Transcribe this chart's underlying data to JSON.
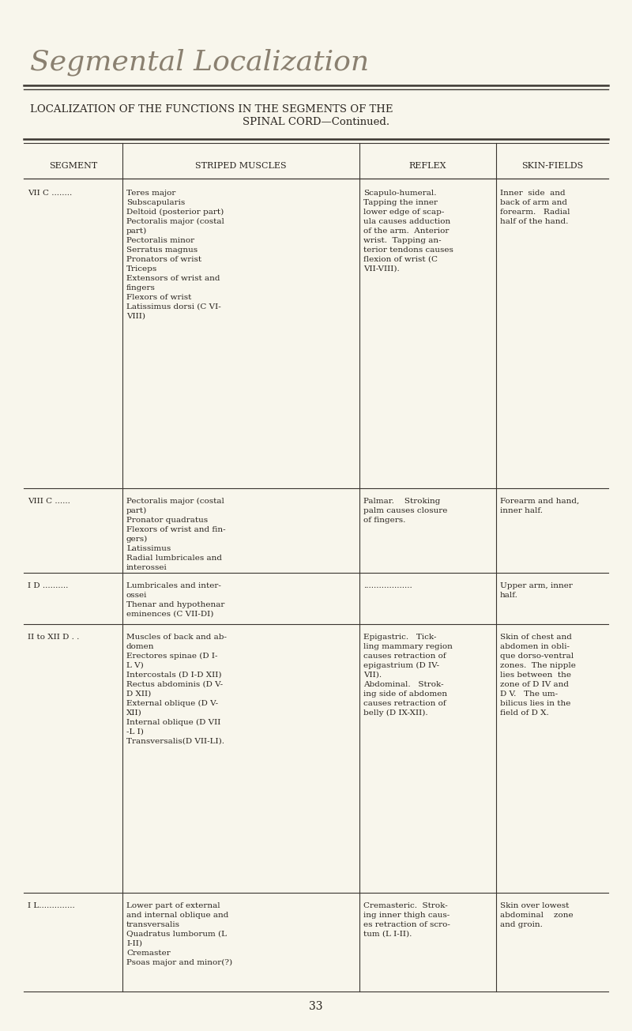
{
  "bg_color": "#f8f6ec",
  "title_italic": "Segmental Localization",
  "main_title_line1": "LOCALIZATION OF THE FUNCTIONS IN THE SEGMENTS OF THE",
  "main_title_line2": "SPINAL CORD—Continued.",
  "col_headers": [
    "SEGMENT",
    "STRIPED MUSCLES",
    "REFLEX",
    "SKIN-FIELDS"
  ],
  "page_number": "33",
  "text_color": "#2a2520",
  "line_color": "#3a3530",
  "rows": [
    {
      "segment": "VII C ........",
      "muscles": "Teres major\nSubscapularis\nDeltoid (posterior part)\nPectoralis major (costal\npart)\nPectoralis minor\nSerratus magnus\nPronators of wrist\nTriceps\nExtensors of wrist and\nfingers\nFlexors of wrist\nLatissimus dorsi (C VI-\nVIII)",
      "reflex": "Scapulo-humeral.\nTapping the inner\nlower edge of scap-\nula causes adduction\nof the arm.  Anterior\nwrist.  Tapping an-\nterior tendons causes\nflexion of wrist (C\nVII-VIII).",
      "skin": "Inner  side  and\nback of arm and\nforearm.   Radial\nhalf of the hand."
    },
    {
      "segment": "VIII C ......",
      "muscles": "Pectoralis major (costal\npart)\nPronator quadratus\nFlexors of wrist and fin-\ngers)\nLatissimus\nRadial lumbricales and\ninterossei",
      "reflex": "Palmar.    Stroking\npalm causes closure\nof fingers.",
      "skin": "Forearm and hand,\ninner half."
    },
    {
      "segment": "I D ..........",
      "muscles": "Lumbricales and inter-\nossei\nThenar and hypothenar\neminences (C VII-DI)",
      "reflex": "...................",
      "skin": "Upper arm, inner\nhalf."
    },
    {
      "segment": "II to XII D . .",
      "muscles": "Muscles of back and ab-\ndomen\nErectores spinae (D I-\nL V)\nIntercostals (D I-D XII)\nRectus abdominis (D V-\nD XII)\nExternal oblique (D V-\nXII)\nInternal oblique (D VII\n-L I)\nTransversalis(D VII-LI).",
      "reflex": "Epigastric.   Tick-\nling mammary region\ncauses retraction of\nepigastrium (D IV-\nVII).\nAbdominal.   Strok-\ning side of abdomen\ncauses retraction of\nbelly (D IX-XII).",
      "skin": "Skin of chest and\nabdomen in obli-\nque dorso-ventral\nzones.  The nipple\nlies between  the\nzone of D IV and\nD V.   The um-\nbilicus lies in the\nfield of D X."
    },
    {
      "segment": "I L..............",
      "muscles": "Lower part of external\nand internal oblique and\ntransversalis\nQuadratus lumborum (L\nI-II)\nCremaster\nPsoas major and minor(?)",
      "reflex": "Cremasteric.  Strok-\ning inner thigh caus-\nes retraction of scro-\ntum (L I-II).",
      "skin": "Skin over lowest\nabdominal    zone\nand groin."
    }
  ]
}
